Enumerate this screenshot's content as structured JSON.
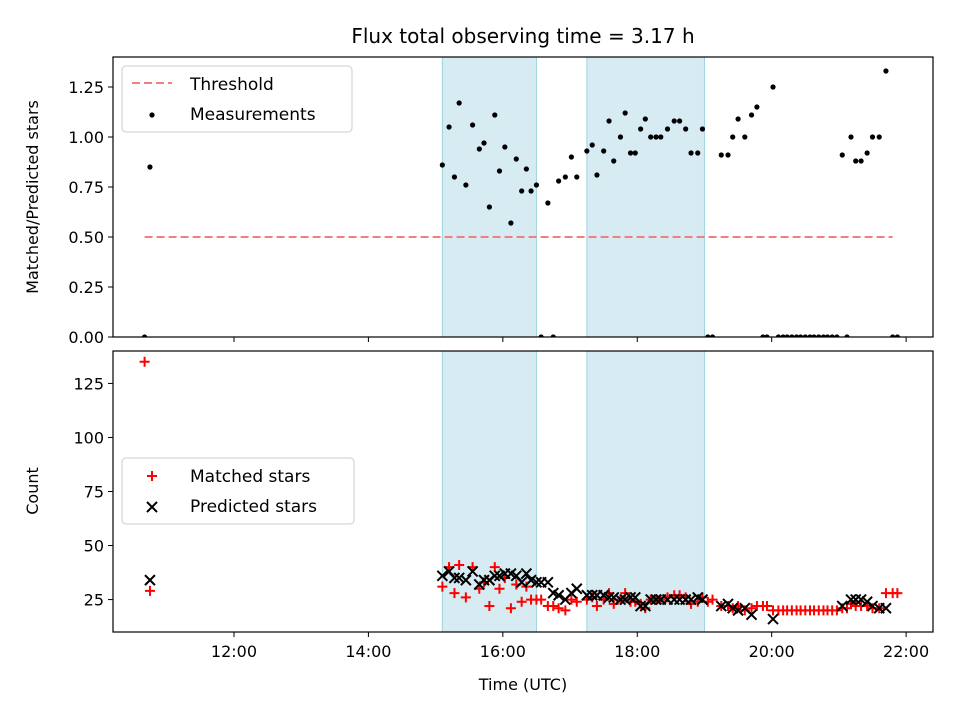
{
  "chart_data": [
    {
      "type": "scatter",
      "title": "Flux total observing time = 3.17 h",
      "xlabel": "",
      "ylabel": "Matched/Predicted stars",
      "xlim": [
        10.2,
        22.4
      ],
      "ylim": [
        0,
        1.4
      ],
      "yticks": [
        "0.00",
        "0.25",
        "0.50",
        "0.75",
        "1.00",
        "1.25"
      ],
      "shaded_regions": [
        [
          15.1,
          16.5
        ],
        [
          17.25,
          19.0
        ]
      ],
      "threshold": {
        "name": "Threshold",
        "value": 0.5,
        "x_range": [
          10.67,
          21.8
        ],
        "color": "#f08080"
      },
      "legend_position": "upper left",
      "series": [
        {
          "name": "Measurements",
          "color": "#000000",
          "points": [
            [
              10.67,
              0.0
            ],
            [
              10.75,
              0.85
            ],
            [
              15.1,
              0.86
            ],
            [
              15.2,
              1.05
            ],
            [
              15.28,
              0.8
            ],
            [
              15.35,
              1.17
            ],
            [
              15.45,
              0.76
            ],
            [
              15.55,
              1.06
            ],
            [
              15.65,
              0.94
            ],
            [
              15.72,
              0.97
            ],
            [
              15.8,
              0.65
            ],
            [
              15.88,
              1.11
            ],
            [
              15.95,
              0.83
            ],
            [
              16.03,
              0.95
            ],
            [
              16.12,
              0.57
            ],
            [
              16.2,
              0.89
            ],
            [
              16.28,
              0.73
            ],
            [
              16.35,
              0.84
            ],
            [
              16.42,
              0.73
            ],
            [
              16.5,
              0.76
            ],
            [
              16.57,
              0.0
            ],
            [
              16.67,
              0.67
            ],
            [
              16.75,
              0.0
            ],
            [
              16.83,
              0.78
            ],
            [
              16.93,
              0.8
            ],
            [
              17.02,
              0.9
            ],
            [
              17.1,
              0.8
            ],
            [
              17.25,
              0.93
            ],
            [
              17.33,
              0.96
            ],
            [
              17.4,
              0.81
            ],
            [
              17.5,
              0.93
            ],
            [
              17.58,
              1.08
            ],
            [
              17.65,
              0.88
            ],
            [
              17.75,
              1.0
            ],
            [
              17.82,
              1.12
            ],
            [
              17.9,
              0.92
            ],
            [
              17.97,
              0.92
            ],
            [
              18.05,
              1.04
            ],
            [
              18.12,
              1.09
            ],
            [
              18.2,
              1.0
            ],
            [
              18.28,
              1.0
            ],
            [
              18.35,
              1.0
            ],
            [
              18.45,
              1.04
            ],
            [
              18.55,
              1.08
            ],
            [
              18.63,
              1.08
            ],
            [
              18.72,
              1.04
            ],
            [
              18.8,
              0.92
            ],
            [
              18.9,
              0.92
            ],
            [
              18.97,
              1.04
            ],
            [
              19.05,
              0.0
            ],
            [
              19.12,
              0.0
            ],
            [
              19.25,
              0.91
            ],
            [
              19.35,
              0.91
            ],
            [
              19.42,
              1.0
            ],
            [
              19.5,
              1.09
            ],
            [
              19.6,
              1.0
            ],
            [
              19.7,
              1.11
            ],
            [
              19.78,
              1.15
            ],
            [
              19.87,
              0.0
            ],
            [
              19.93,
              0.0
            ],
            [
              20.02,
              1.25
            ],
            [
              20.1,
              0.0
            ],
            [
              20.17,
              0.0
            ],
            [
              20.23,
              0.0
            ],
            [
              20.3,
              0.0
            ],
            [
              20.37,
              0.0
            ],
            [
              20.43,
              0.0
            ],
            [
              20.5,
              0.0
            ],
            [
              20.57,
              0.0
            ],
            [
              20.63,
              0.0
            ],
            [
              20.7,
              0.0
            ],
            [
              20.77,
              0.0
            ],
            [
              20.83,
              0.0
            ],
            [
              20.9,
              0.0
            ],
            [
              20.97,
              0.0
            ],
            [
              21.05,
              0.91
            ],
            [
              21.12,
              0.0
            ],
            [
              21.18,
              1.0
            ],
            [
              21.25,
              0.88
            ],
            [
              21.33,
              0.88
            ],
            [
              21.42,
              0.92
            ],
            [
              21.5,
              1.0
            ],
            [
              21.6,
              1.0
            ],
            [
              21.7,
              1.33
            ],
            [
              21.8,
              0.0
            ],
            [
              21.87,
              0.0
            ]
          ]
        }
      ]
    },
    {
      "type": "scatter",
      "title": "",
      "xlabel": "Time (UTC)",
      "ylabel": "Count",
      "xlim": [
        10.2,
        22.4
      ],
      "ylim": [
        10,
        140
      ],
      "yticks": [
        "25",
        "50",
        "75",
        "100",
        "125"
      ],
      "xticks": [
        "12:00",
        "14:00",
        "16:00",
        "18:00",
        "20:00",
        "22:00"
      ],
      "shaded_regions": [
        [
          15.1,
          16.5
        ],
        [
          17.25,
          19.0
        ]
      ],
      "legend_position": "center left",
      "series": [
        {
          "name": "Matched stars",
          "marker": "plus",
          "color": "#ff0000",
          "points": [
            [
              10.67,
              135
            ],
            [
              10.75,
              29
            ],
            [
              15.1,
              31
            ],
            [
              15.2,
              40
            ],
            [
              15.28,
              28
            ],
            [
              15.35,
              41
            ],
            [
              15.45,
              26
            ],
            [
              15.55,
              40
            ],
            [
              15.65,
              30
            ],
            [
              15.72,
              33
            ],
            [
              15.8,
              22
            ],
            [
              15.88,
              40
            ],
            [
              15.95,
              30
            ],
            [
              16.03,
              35
            ],
            [
              16.12,
              21
            ],
            [
              16.2,
              32
            ],
            [
              16.28,
              24
            ],
            [
              16.35,
              31
            ],
            [
              16.42,
              25
            ],
            [
              16.5,
              25
            ],
            [
              16.57,
              25
            ],
            [
              16.67,
              22
            ],
            [
              16.75,
              22
            ],
            [
              16.83,
              21
            ],
            [
              16.93,
              20
            ],
            [
              17.02,
              25
            ],
            [
              17.1,
              24
            ],
            [
              17.25,
              25
            ],
            [
              17.33,
              26
            ],
            [
              17.4,
              22
            ],
            [
              17.5,
              25
            ],
            [
              17.58,
              28
            ],
            [
              17.65,
              23
            ],
            [
              17.75,
              25
            ],
            [
              17.82,
              28
            ],
            [
              17.9,
              24
            ],
            [
              17.97,
              24
            ],
            [
              18.05,
              23
            ],
            [
              18.12,
              21
            ],
            [
              18.2,
              25
            ],
            [
              18.28,
              25
            ],
            [
              18.35,
              25
            ],
            [
              18.45,
              26
            ],
            [
              18.55,
              27
            ],
            [
              18.63,
              27
            ],
            [
              18.72,
              26
            ],
            [
              18.8,
              23
            ],
            [
              18.9,
              24
            ],
            [
              18.97,
              26
            ],
            [
              19.05,
              24
            ],
            [
              19.12,
              25
            ],
            [
              19.25,
              22
            ],
            [
              19.35,
              22
            ],
            [
              19.42,
              21
            ],
            [
              19.5,
              22
            ],
            [
              19.6,
              20
            ],
            [
              19.7,
              21
            ],
            [
              19.78,
              22
            ],
            [
              19.87,
              22
            ],
            [
              19.93,
              22
            ],
            [
              20.02,
              20
            ],
            [
              20.1,
              20
            ],
            [
              20.17,
              20
            ],
            [
              20.23,
              20
            ],
            [
              20.3,
              20
            ],
            [
              20.37,
              20
            ],
            [
              20.43,
              20
            ],
            [
              20.5,
              20
            ],
            [
              20.57,
              20
            ],
            [
              20.63,
              20
            ],
            [
              20.7,
              20
            ],
            [
              20.77,
              20
            ],
            [
              20.83,
              20
            ],
            [
              20.9,
              20
            ],
            [
              20.97,
              20
            ],
            [
              21.05,
              21
            ],
            [
              21.12,
              21
            ],
            [
              21.18,
              23
            ],
            [
              21.25,
              22
            ],
            [
              21.33,
              22
            ],
            [
              21.42,
              22
            ],
            [
              21.5,
              21
            ],
            [
              21.6,
              21
            ],
            [
              21.7,
              28
            ],
            [
              21.8,
              28
            ],
            [
              21.87,
              28
            ]
          ]
        },
        {
          "name": "Predicted stars",
          "marker": "x",
          "color": "#000000",
          "points": [
            [
              10.75,
              34
            ],
            [
              15.1,
              36
            ],
            [
              15.2,
              38
            ],
            [
              15.28,
              35
            ],
            [
              15.35,
              35
            ],
            [
              15.45,
              34
            ],
            [
              15.55,
              38
            ],
            [
              15.65,
              32
            ],
            [
              15.72,
              34
            ],
            [
              15.8,
              34
            ],
            [
              15.88,
              36
            ],
            [
              15.95,
              36
            ],
            [
              16.03,
              37
            ],
            [
              16.12,
              37
            ],
            [
              16.2,
              36
            ],
            [
              16.28,
              33
            ],
            [
              16.35,
              37
            ],
            [
              16.42,
              34
            ],
            [
              16.5,
              33
            ],
            [
              16.57,
              33
            ],
            [
              16.67,
              33
            ],
            [
              16.75,
              28
            ],
            [
              16.83,
              27
            ],
            [
              16.93,
              25
            ],
            [
              17.02,
              28
            ],
            [
              17.1,
              30
            ],
            [
              17.25,
              27
            ],
            [
              17.33,
              27
            ],
            [
              17.4,
              27
            ],
            [
              17.5,
              27
            ],
            [
              17.58,
              26
            ],
            [
              17.65,
              26
            ],
            [
              17.75,
              25
            ],
            [
              17.82,
              25
            ],
            [
              17.9,
              26
            ],
            [
              17.97,
              26
            ],
            [
              18.05,
              22
            ],
            [
              18.12,
              22
            ],
            [
              18.2,
              25
            ],
            [
              18.28,
              25
            ],
            [
              18.35,
              25
            ],
            [
              18.45,
              25
            ],
            [
              18.55,
              25
            ],
            [
              18.63,
              25
            ],
            [
              18.72,
              25
            ],
            [
              18.8,
              25
            ],
            [
              18.9,
              26
            ],
            [
              18.97,
              25
            ],
            [
              19.25,
              22
            ],
            [
              19.35,
              23
            ],
            [
              19.42,
              21
            ],
            [
              19.5,
              20
            ],
            [
              19.6,
              21
            ],
            [
              19.7,
              18
            ],
            [
              20.02,
              16
            ],
            [
              21.05,
              22
            ],
            [
              21.18,
              25
            ],
            [
              21.25,
              25
            ],
            [
              21.33,
              25
            ],
            [
              21.42,
              24
            ],
            [
              21.5,
              22
            ],
            [
              21.6,
              21
            ],
            [
              21.7,
              21
            ]
          ]
        }
      ]
    }
  ]
}
